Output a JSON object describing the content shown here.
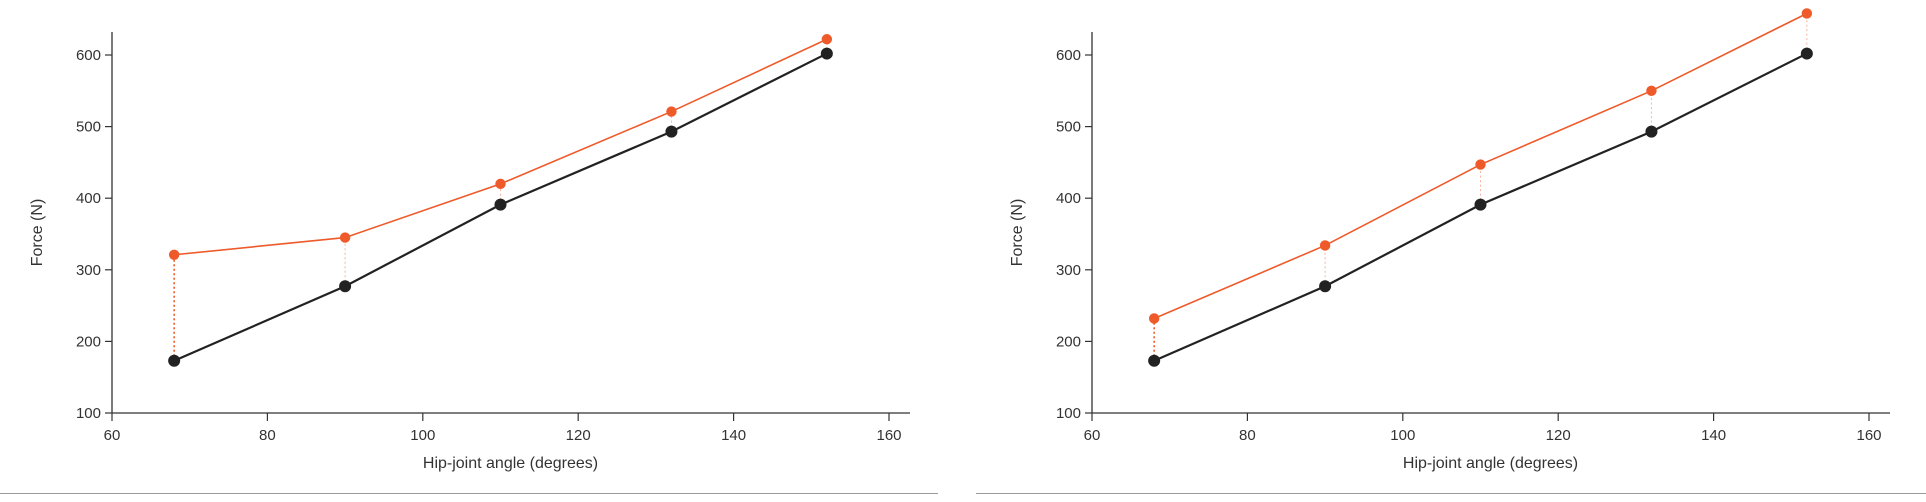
{
  "colors": {
    "series_a": "#222222",
    "series_b": "#ee5a2a",
    "axis": "#333333",
    "connector": "#ee5a2a"
  },
  "chart_data": [
    {
      "type": "line",
      "xlabel": "Hip-joint angle (degrees)",
      "ylabel": "Force (N)",
      "xlim": [
        60,
        160
      ],
      "ylim": [
        100,
        620
      ],
      "x_ticks": [
        60,
        80,
        100,
        120,
        140,
        160
      ],
      "y_ticks": [
        100,
        200,
        300,
        400,
        500,
        600
      ],
      "grid": false,
      "series": [
        {
          "color": "#222222",
          "x": [
            68,
            90,
            110,
            132,
            152
          ],
          "y": [
            173,
            277,
            391,
            493,
            602
          ]
        },
        {
          "color": "#ee5a2a",
          "x": [
            68,
            90,
            110,
            132,
            152
          ],
          "y": [
            321,
            345,
            420,
            521,
            622
          ]
        }
      ]
    },
    {
      "type": "line",
      "xlabel": "Hip-joint angle (degrees)",
      "ylabel": "Force (N)",
      "xlim": [
        60,
        160
      ],
      "ylim": [
        100,
        660
      ],
      "x_ticks": [
        60,
        80,
        100,
        120,
        140,
        160
      ],
      "y_ticks": [
        100,
        200,
        300,
        400,
        500,
        600
      ],
      "grid": false,
      "series": [
        {
          "color": "#222222",
          "x": [
            68,
            90,
            110,
            132,
            152
          ],
          "y": [
            173,
            277,
            391,
            493,
            602
          ]
        },
        {
          "color": "#ee5a2a",
          "x": [
            68,
            90,
            110,
            132,
            152
          ],
          "y": [
            232,
            334,
            447,
            550,
            658
          ]
        }
      ]
    }
  ]
}
